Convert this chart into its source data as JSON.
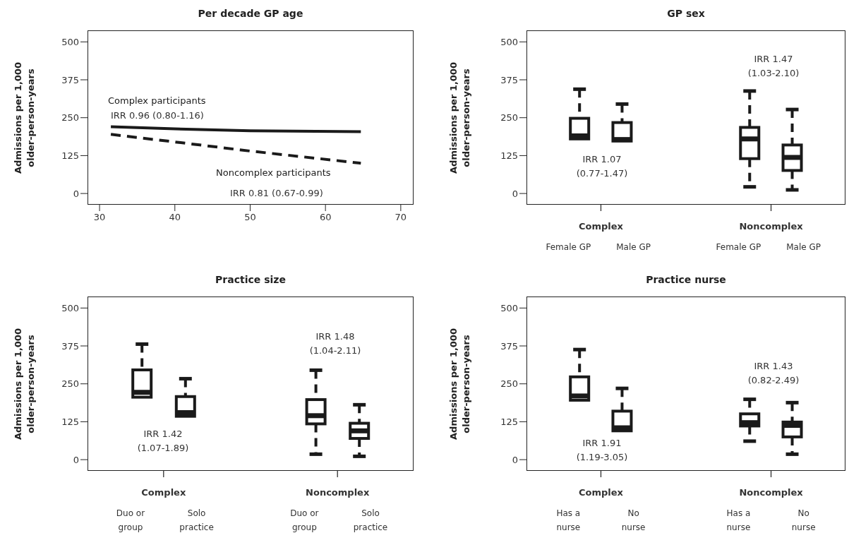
{
  "chart_data": [
    {
      "type": "line",
      "title": "Per decade GP age",
      "ylabel": "Admissions per 1,000 older-person-years",
      "xlim": [
        28.4,
        71.7
      ],
      "xticks": [
        30,
        40,
        50,
        60,
        70
      ],
      "ylim": [
        -37,
        538
      ],
      "yticks": [
        0,
        125,
        250,
        375,
        500
      ],
      "series": [
        {
          "name": "Complex participants",
          "color": "#1a1a1a",
          "line_style": "solid",
          "x": [
            31.5,
            40,
            50,
            64.7
          ],
          "values": [
            220,
            213,
            207,
            204
          ]
        },
        {
          "name": "Noncomplex participants",
          "color": "#1a1a1a",
          "line_style": "dashed",
          "x": [
            31.5,
            40,
            50,
            64.7
          ],
          "values": [
            195,
            170,
            140,
            100
          ]
        }
      ],
      "annotations": [
        "IRR 0.96 (0.80-1.16)",
        "IRR 0.81 (0.67-0.99)"
      ]
    },
    {
      "type": "box",
      "title": "GP sex",
      "ylabel": "Admissions per 1,000 older-person-years",
      "ylim": [
        -37,
        538
      ],
      "yticks": [
        0,
        125,
        250,
        375,
        500
      ],
      "color": "#1a1a1a",
      "categories": [
        "Female GP",
        "Male GP",
        "Female GP",
        "Male GP"
      ],
      "boxes": [
        {
          "low": 180,
          "q1": 180,
          "median": 190,
          "q3": 248,
          "high": 344
        },
        {
          "low": 173,
          "q1": 173,
          "median": 178,
          "q3": 234,
          "high": 295
        },
        {
          "low": 22,
          "q1": 115,
          "median": 180,
          "q3": 218,
          "high": 338
        },
        {
          "low": 12,
          "q1": 76,
          "median": 119,
          "q3": 160,
          "high": 277
        }
      ],
      "annotations": [
        "Complex",
        "Noncomplex",
        "IRR 1.07 (0.77-1.47)",
        "IRR 1.47 (1.03-2.10)"
      ]
    },
    {
      "type": "box",
      "title": "Practice size",
      "ylabel": "Admissions per 1,000 older-person-years",
      "ylim": [
        -37,
        538
      ],
      "yticks": [
        0,
        125,
        250,
        375,
        500
      ],
      "color": "#1a1a1a",
      "categories": [
        "Duo or group",
        "Solo practice",
        "Duo or group",
        "Solo practice"
      ],
      "boxes": [
        {
          "low": 206,
          "q1": 206,
          "median": 222,
          "q3": 296,
          "high": 381
        },
        {
          "low": 143,
          "q1": 143,
          "median": 155,
          "q3": 208,
          "high": 267
        },
        {
          "low": 18,
          "q1": 118,
          "median": 145,
          "q3": 198,
          "high": 295
        },
        {
          "low": 11,
          "q1": 70,
          "median": 95,
          "q3": 120,
          "high": 181
        }
      ],
      "annotations": [
        "Complex",
        "Noncomplex",
        "IRR 1.42 (1.07-1.89)",
        "IRR 1.48 (1.04-2.11)"
      ]
    },
    {
      "type": "box",
      "title": "Practice nurse",
      "ylabel": "Admissions per 1,000 older-person-years",
      "ylim": [
        -37,
        538
      ],
      "yticks": [
        0,
        125,
        250,
        375,
        500
      ],
      "color": "#1a1a1a",
      "categories": [
        "Has a nurse",
        "No nurse",
        "Has a nurse",
        "No nurse"
      ],
      "boxes": [
        {
          "low": 196,
          "q1": 196,
          "median": 210,
          "q3": 273,
          "high": 363
        },
        {
          "low": 95,
          "q1": 95,
          "median": 105,
          "q3": 160,
          "high": 235
        },
        {
          "low": 61,
          "q1": 111,
          "median": 122,
          "q3": 151,
          "high": 199
        },
        {
          "low": 18,
          "q1": 75,
          "median": 113,
          "q3": 124,
          "high": 188
        }
      ],
      "annotations": [
        "Complex",
        "Noncomplex",
        "IRR 1.91 (1.19-3.05)",
        "IRR 1.43 (0.82-2.49)"
      ]
    }
  ]
}
